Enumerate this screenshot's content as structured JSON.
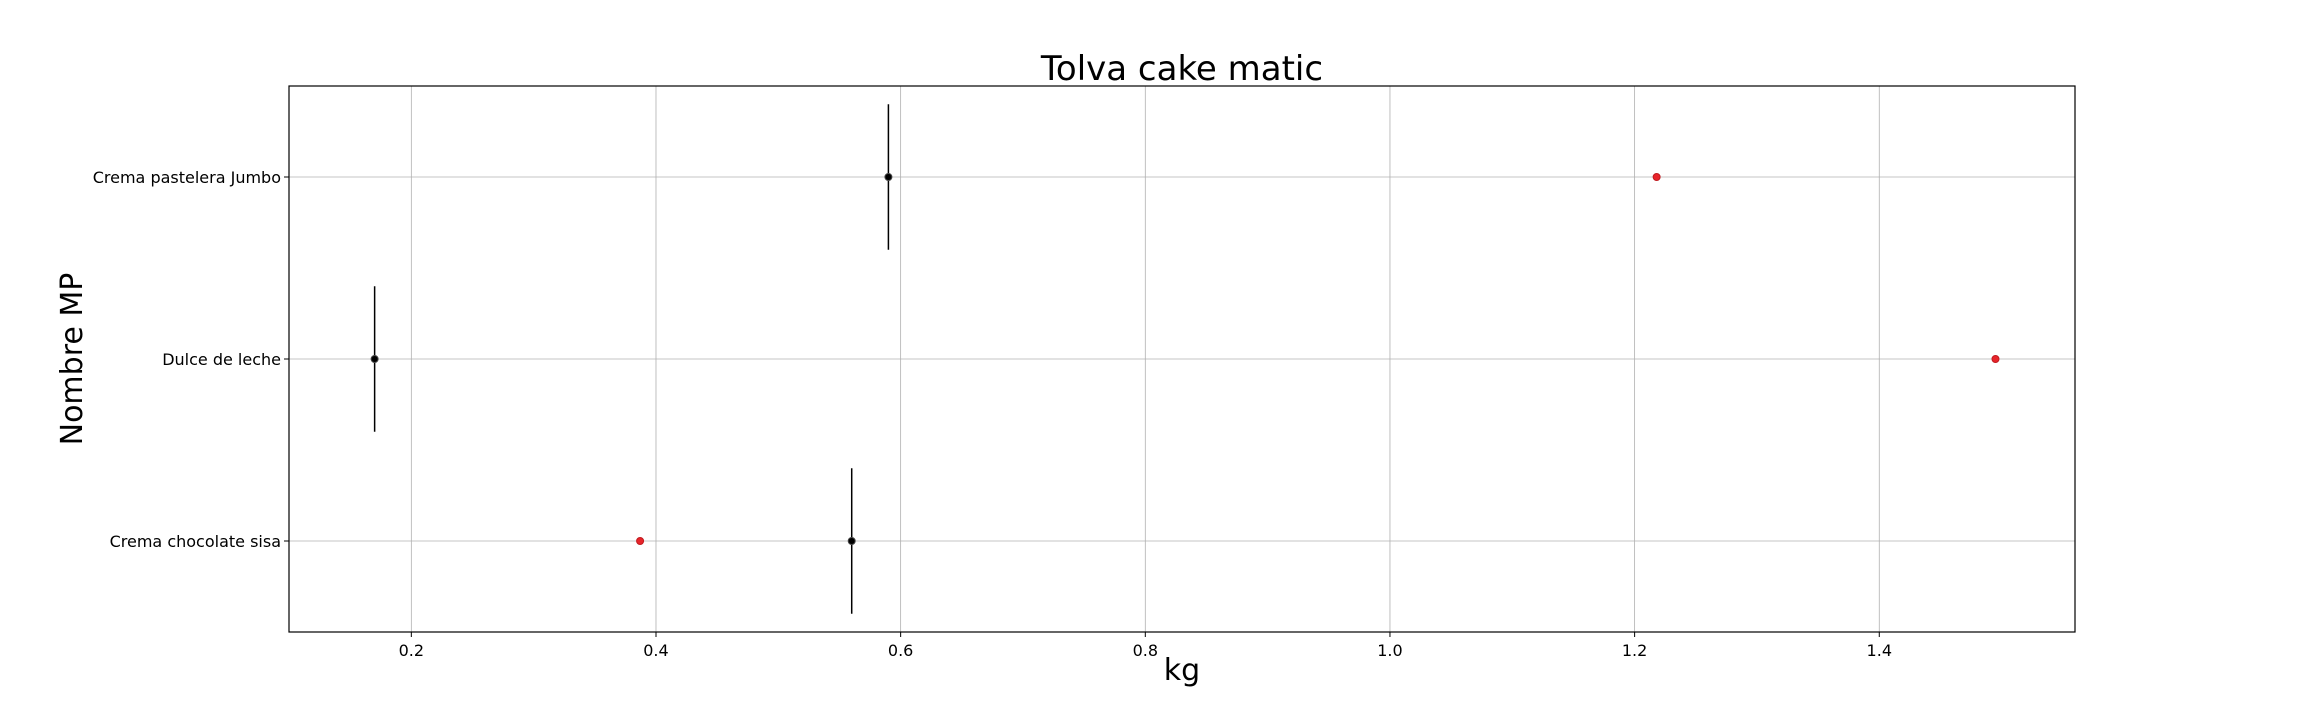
{
  "chart_data": {
    "type": "scatter",
    "title": "Tolva cake matic",
    "xlabel": "kg",
    "ylabel": "Nombre MP",
    "xlim": [
      0.1,
      1.56
    ],
    "xticks": [
      0.2,
      0.4,
      0.6,
      0.8,
      1.0,
      1.2,
      1.4
    ],
    "xtick_labels": [
      "0.2",
      "0.4",
      "0.6",
      "0.8",
      "1.0",
      "1.2",
      "1.4"
    ],
    "categories": [
      "Crema pastelera Jumbo",
      "Dulce de leche",
      "Crema chocolate sisa"
    ],
    "grid": true,
    "series": [
      {
        "color": "#000000",
        "values": [
          0.59,
          0.17,
          0.56
        ],
        "error_bar": "vertical"
      },
      {
        "color": "#e8242a",
        "values": [
          1.218,
          1.495,
          0.387
        ]
      }
    ]
  }
}
